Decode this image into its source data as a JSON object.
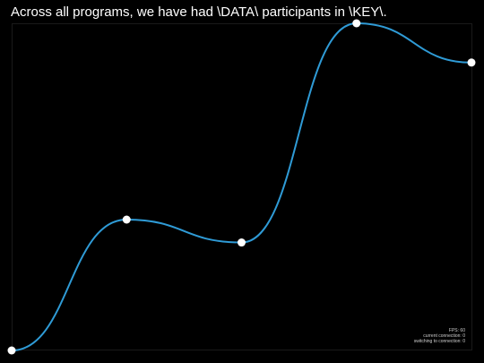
{
  "title": "Across all programs, we have had \\DATA\\ participants in \\KEY\\.",
  "stats": {
    "fps": "FPS: 60",
    "current_connection": "current connection: 0",
    "switching_connection": "switching to connection: 0"
  },
  "colors": {
    "background": "#000000",
    "line": "#2f9bd6",
    "point": "#ffffff",
    "text": "#ffffff"
  },
  "chart_data": {
    "type": "line",
    "smooth": true,
    "x": [
      0,
      1,
      2,
      3,
      4
    ],
    "y": [
      0,
      0.4,
      0.33,
      1.0,
      0.88
    ],
    "title": "Across all programs, we have had \\DATA\\ participants in \\KEY\\.",
    "xlabel": "",
    "ylabel": "",
    "ylim": [
      0,
      1
    ],
    "grid": false,
    "legend": "none"
  }
}
